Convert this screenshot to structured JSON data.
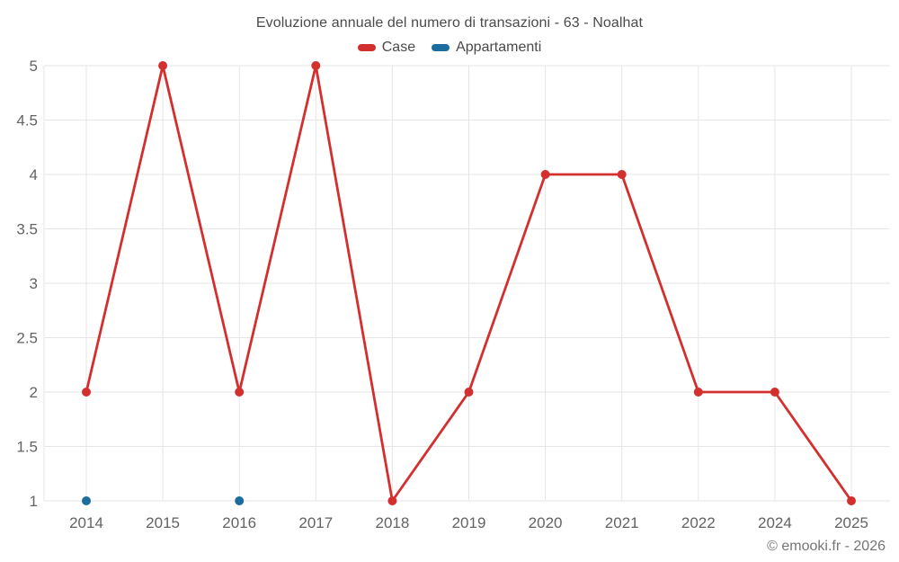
{
  "chart_data": {
    "type": "line",
    "title": "Evoluzione annuale del numero di transazioni - 63 - Noalhat",
    "footer": "© emooki.fr - 2026",
    "categories": [
      "2014",
      "2015",
      "2016",
      "2017",
      "2018",
      "2019",
      "2020",
      "2021",
      "2022",
      "2024",
      "2025"
    ],
    "series": [
      {
        "name": "Case",
        "color": "#d32f2f",
        "values": [
          2,
          5,
          2,
          5,
          1,
          2,
          4,
          4,
          2,
          2,
          1
        ]
      },
      {
        "name": "Appartamenti",
        "color": "#1a6d9e",
        "values": [
          1,
          null,
          1,
          null,
          null,
          null,
          null,
          null,
          null,
          null,
          null
        ]
      }
    ],
    "y_ticks": [
      1,
      1.5,
      2,
      2.5,
      3,
      3.5,
      4,
      4.5,
      5
    ],
    "ylim": [
      1,
      5
    ],
    "xlabel": "",
    "ylabel": "",
    "grid": true,
    "legend_position": "top",
    "grid_color": "#e6e6e6"
  }
}
